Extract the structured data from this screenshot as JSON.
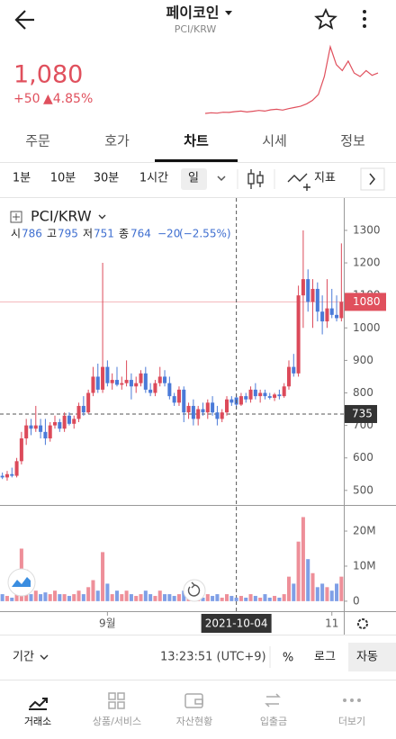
{
  "header": {
    "title": "페이코인",
    "subtitle": "PCI/KRW"
  },
  "price": {
    "value": "1,080",
    "change": "+50",
    "change_pct": "▲4.85%"
  },
  "tabs": [
    "주문",
    "호가",
    "차트",
    "시세",
    "정보"
  ],
  "intervals": [
    "1분",
    "10분",
    "30분",
    "1시간",
    "일"
  ],
  "indicator_button": "지표",
  "legend": {
    "symbol": "PCI/KRW",
    "open_label": "시",
    "high_label": "고",
    "low_label": "저",
    "close_label": "종",
    "change": "−20",
    "change_pct": "(−2.55%)"
  },
  "chart_data": [
    {
      "type": "line",
      "color": "#e0505d",
      "values": [
        740,
        745,
        742,
        750,
        748,
        755,
        760,
        752,
        758,
        765,
        760,
        770,
        775,
        768,
        780,
        790,
        800,
        820,
        850,
        900,
        1050,
        1300,
        1150,
        1100,
        1180,
        1080,
        1050,
        1100,
        1060,
        1080
      ]
    },
    {
      "type": "candlestick",
      "up_color": "#dc4a5a",
      "down_color": "#4a7ad8",
      "categories": [
        null,
        null,
        null,
        null,
        null,
        null,
        null,
        null,
        null,
        null,
        null,
        null,
        null,
        null,
        null,
        null,
        null,
        null,
        null,
        null,
        null,
        null,
        "9월",
        null,
        null,
        null,
        null,
        null,
        null,
        null,
        null,
        null,
        null,
        null,
        null,
        null,
        null,
        null,
        null,
        null,
        null,
        null,
        null,
        null,
        null,
        null,
        null,
        null,
        null,
        "2021-10-04",
        null,
        null,
        null,
        null,
        null,
        null,
        null,
        null,
        null,
        null,
        null,
        null,
        null,
        null,
        null,
        null,
        null,
        null,
        null,
        "11",
        null,
        null
      ],
      "open": [
        545,
        540,
        550,
        545,
        590,
        660,
        700,
        690,
        700,
        680,
        660,
        700,
        710,
        690,
        730,
        705,
        720,
        760,
        740,
        800,
        850,
        810,
        880,
        830,
        840,
        825,
        830,
        840,
        820,
        830,
        860,
        810,
        800,
        830,
        850,
        830,
        790,
        770,
        810,
        740,
        760,
        720,
        750,
        740,
        770,
        740,
        720,
        740,
        780,
        786,
        764,
        790,
        780,
        810,
        790,
        800,
        790,
        785,
        795,
        790,
        820,
        880,
        860,
        1100,
        1150,
        1080,
        1120,
        1050,
        1020,
        1060,
        1040,
        1030
      ],
      "high": [
        555,
        560,
        570,
        600,
        680,
        720,
        720,
        760,
        720,
        720,
        710,
        730,
        720,
        740,
        740,
        730,
        770,
        790,
        810,
        880,
        890,
        1200,
        900,
        860,
        880,
        850,
        900,
        860,
        850,
        870,
        880,
        830,
        840,
        880,
        870,
        850,
        800,
        820,
        820,
        770,
        780,
        760,
        770,
        780,
        790,
        760,
        750,
        790,
        790,
        795,
        800,
        800,
        820,
        830,
        810,
        810,
        800,
        800,
        810,
        830,
        900,
        920,
        1130,
        1300,
        1180,
        1150,
        1140,
        1100,
        1150,
        1120,
        1100,
        1260
      ],
      "low": [
        535,
        530,
        540,
        540,
        580,
        640,
        670,
        680,
        660,
        640,
        650,
        690,
        680,
        680,
        700,
        690,
        710,
        730,
        735,
        790,
        800,
        800,
        820,
        810,
        820,
        810,
        820,
        780,
        800,
        820,
        800,
        790,
        790,
        820,
        820,
        780,
        760,
        760,
        710,
        720,
        700,
        700,
        730,
        720,
        730,
        700,
        710,
        730,
        760,
        751,
        760,
        770,
        770,
        780,
        770,
        780,
        780,
        775,
        780,
        785,
        810,
        850,
        850,
        1000,
        1050,
        1000,
        1020,
        980,
        1000,
        1030,
        1020,
        1020
      ],
      "close": [
        540,
        550,
        545,
        590,
        660,
        700,
        690,
        700,
        680,
        660,
        700,
        710,
        690,
        730,
        705,
        720,
        760,
        740,
        800,
        850,
        810,
        880,
        830,
        840,
        825,
        830,
        840,
        820,
        830,
        860,
        810,
        800,
        830,
        850,
        830,
        790,
        770,
        810,
        740,
        760,
        720,
        750,
        740,
        770,
        740,
        720,
        740,
        780,
        770,
        764,
        790,
        780,
        810,
        790,
        800,
        790,
        785,
        795,
        790,
        820,
        880,
        860,
        1100,
        1150,
        1080,
        1120,
        1050,
        1020,
        1060,
        1040,
        1030,
        1080
      ],
      "ylim": [
        458,
        1394
      ],
      "yticks": [
        500,
        600,
        700,
        800,
        900,
        1000,
        1100,
        1200,
        1300
      ],
      "price_line": 1080,
      "crosshair_y": 735
    },
    {
      "type": "bar",
      "values": [
        2000000,
        1500000,
        1000000,
        3000000,
        15000000,
        9000000,
        2000000,
        3000000,
        2000000,
        2500000,
        2000000,
        3000000,
        2000000,
        2000000,
        1500000,
        2000000,
        3000000,
        2000000,
        4000000,
        6000000,
        3000000,
        14000000,
        5000000,
        2000000,
        3000000,
        2000000,
        3000000,
        2000000,
        1500000,
        2000000,
        3000000,
        2000000,
        1500000,
        3000000,
        2000000,
        2000000,
        1500000,
        2000000,
        3000000,
        2000000,
        2000000,
        1500000,
        1000000,
        2000000,
        1500000,
        2000000,
        1000000,
        2000000,
        1500000,
        1000000,
        1500000,
        1000000,
        2000000,
        1500000,
        1000000,
        2000000,
        1000000,
        1500000,
        1000000,
        2000000,
        7000000,
        5000000,
        17000000,
        24000000,
        12000000,
        8000000,
        4000000,
        5000000,
        4000000,
        3000000,
        5000000,
        7000000
      ],
      "ylim": [
        -2600000,
        27200000
      ],
      "yticks": [
        0,
        {
          "value": 10000000,
          "label": "10M"
        },
        {
          "value": 20000000,
          "label": "20M"
        }
      ]
    }
  ],
  "footer": {
    "period": "기간",
    "time": "13:23:51 (UTC+9)",
    "percent": "%",
    "log": "로그",
    "auto": "자동"
  },
  "nav": [
    "거래소",
    "상품/서비스",
    "자산현황",
    "입출금",
    "더보기"
  ]
}
